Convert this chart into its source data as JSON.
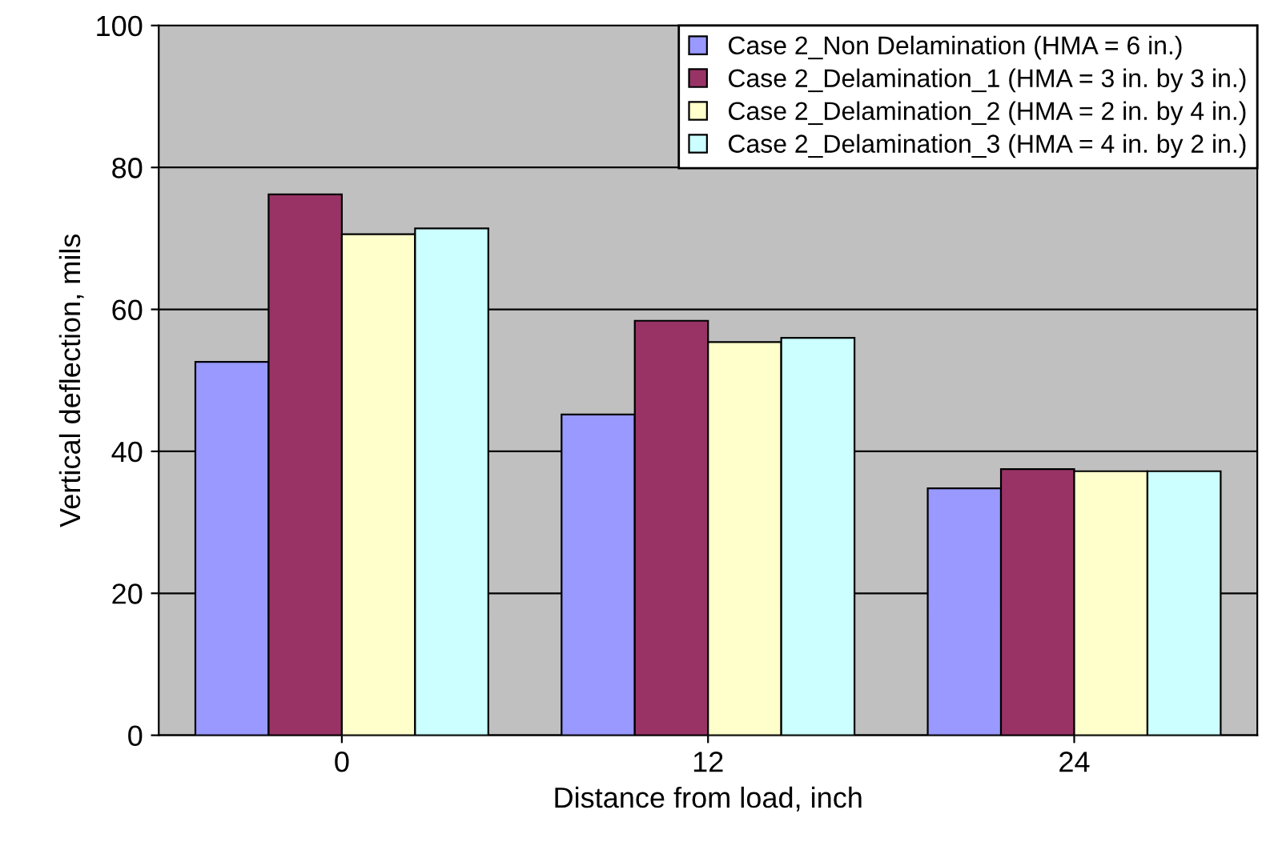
{
  "chart_data": {
    "type": "bar",
    "xlabel": "Distance from load, inch",
    "ylabel": "Vertical deflection, mils",
    "categories": [
      "0",
      "12",
      "24"
    ],
    "series": [
      {
        "name": "Case 2_Non Delamination (HMA = 6 in.)",
        "color": "#9999ff",
        "values": [
          52.6,
          45.2,
          34.8
        ]
      },
      {
        "name": "Case 2_Delamination_1 (HMA = 3 in. by 3 in.)",
        "color": "#993366",
        "values": [
          76.2,
          58.4,
          37.5
        ]
      },
      {
        "name": "Case 2_Delamination_2 (HMA = 2 in. by 4 in.)",
        "color": "#ffffcc",
        "values": [
          70.6,
          55.4,
          37.2
        ]
      },
      {
        "name": "Case 2_Delamination_3 (HMA = 4 in. by 2 in.)",
        "color": "#ccffff",
        "values": [
          71.4,
          56.0,
          37.2
        ]
      }
    ],
    "ylim": [
      0,
      100
    ],
    "yticks": [
      0,
      20,
      40,
      60,
      80,
      100
    ],
    "grid": "y",
    "legend": "top right"
  }
}
